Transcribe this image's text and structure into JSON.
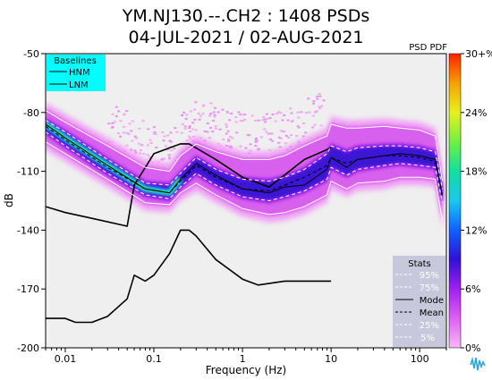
{
  "chart_data": {
    "type": "heatmap",
    "title_line1": "YM.NJ130.--.CH2 : 1408 PSDs",
    "title_line2": "04-JUL-2021 / 02-AUG-2021",
    "corner_label": "PSD PDF",
    "xlabel": "Frequency (Hz)",
    "ylabel": "dB",
    "x_scale": "log",
    "xlim": [
      0.006,
      200
    ],
    "ylim": [
      -200,
      -50
    ],
    "x_ticks": [
      {
        "value": 0.01,
        "label": "0.01"
      },
      {
        "value": 0.1,
        "label": "0.1"
      },
      {
        "value": 1,
        "label": "1"
      },
      {
        "value": 10,
        "label": "10"
      },
      {
        "value": 100,
        "label": "100"
      }
    ],
    "y_ticks": [
      {
        "value": -50,
        "label": "-50"
      },
      {
        "value": -80,
        "label": "-80"
      },
      {
        "value": -110,
        "label": "-110"
      },
      {
        "value": -140,
        "label": "-140"
      },
      {
        "value": -170,
        "label": "-170"
      },
      {
        "value": -200,
        "label": "-200"
      }
    ],
    "colorbar": {
      "ticks": [
        {
          "value": 0,
          "label": "0%"
        },
        {
          "value": 6,
          "label": "6%"
        },
        {
          "value": 12,
          "label": "12%"
        },
        {
          "value": 18,
          "label": "18%"
        },
        {
          "value": 24,
          "label": "24%"
        },
        {
          "value": 30,
          "label": "30+%"
        }
      ],
      "colors": [
        "#f7b8f8",
        "#e060f0",
        "#a020f0",
        "#3010d8",
        "#1060ff",
        "#18c8f0",
        "#10e0a0",
        "#70f040",
        "#e8f020",
        "#f8a000",
        "#ff2000"
      ]
    },
    "baselines_legend": {
      "title": "Baselines",
      "items": [
        "HNM",
        "LNM"
      ],
      "bg_color": "#00ffff"
    },
    "stats_legend": {
      "title": "Stats",
      "items": [
        "95%",
        "75%",
        "Mode",
        "Mean",
        "25%",
        "5%"
      ],
      "bg_color": "#c8c8dc"
    },
    "series": [
      {
        "name": "HNM",
        "x": [
          0.006,
          0.01,
          0.02,
          0.05,
          0.06,
          0.1,
          0.2,
          0.25,
          0.5,
          1,
          2,
          5,
          10
        ],
        "values": [
          -128,
          -131,
          -134,
          -138,
          -117,
          -101,
          -96,
          -96,
          -104,
          -113,
          -118,
          -104,
          -98
        ]
      },
      {
        "name": "LNM",
        "x": [
          0.006,
          0.01,
          0.013,
          0.02,
          0.03,
          0.05,
          0.06,
          0.08,
          0.1,
          0.15,
          0.2,
          0.25,
          0.3,
          0.5,
          1,
          1.5,
          3,
          10
        ],
        "values": [
          -185,
          -185,
          -187,
          -187,
          -184,
          -175,
          -163,
          -166,
          -163,
          -152,
          -140,
          -140,
          -143,
          -155,
          -165,
          -168,
          -166,
          -166
        ]
      },
      {
        "name": "Mode",
        "x": [
          0.006,
          0.01,
          0.03,
          0.08,
          0.15,
          0.2,
          0.3,
          0.5,
          1,
          2,
          3,
          5,
          9,
          10,
          15,
          20,
          40,
          60,
          100,
          150,
          180
        ],
        "values": [
          -86,
          -93,
          -107,
          -119,
          -121,
          -114,
          -106,
          -112,
          -119,
          -121,
          -118,
          -117,
          -109,
          -103,
          -108,
          -104,
          -102,
          -101,
          -102,
          -104,
          -122
        ]
      },
      {
        "name": "Mean",
        "x": [
          0.006,
          0.01,
          0.03,
          0.08,
          0.15,
          0.2,
          0.3,
          0.5,
          1,
          2,
          3,
          5,
          9,
          10,
          15,
          20,
          40,
          60,
          100,
          150,
          180
        ],
        "values": [
          -87,
          -94,
          -108,
          -119,
          -121,
          -115,
          -107,
          -113,
          -119,
          -120,
          -117,
          -113,
          -107,
          -103,
          -106,
          -104,
          -102,
          -102,
          -103,
          -105,
          -123
        ]
      },
      {
        "name": "95%",
        "x": [
          0.006,
          0.01,
          0.03,
          0.08,
          0.15,
          0.2,
          0.3,
          0.5,
          1,
          2,
          3,
          5,
          9,
          10,
          15,
          20,
          40,
          60,
          100,
          150,
          180
        ],
        "values": [
          -79,
          -85,
          -97,
          -108,
          -110,
          -102,
          -96,
          -100,
          -104,
          -104,
          -102,
          -97,
          -92,
          -86,
          -88,
          -88,
          -87,
          -88,
          -89,
          -92,
          -115
        ]
      },
      {
        "name": "75%",
        "x": [
          0.006,
          0.01,
          0.03,
          0.08,
          0.15,
          0.2,
          0.3,
          0.5,
          1,
          2,
          3,
          5,
          9,
          10,
          15,
          20,
          40,
          60,
          100,
          150,
          180
        ],
        "values": [
          -84,
          -90,
          -104,
          -116,
          -117,
          -111,
          -103,
          -109,
          -114,
          -115,
          -113,
          -109,
          -101,
          -97,
          -100,
          -98,
          -97,
          -97,
          -98,
          -100,
          -119
        ]
      },
      {
        "name": "25%",
        "x": [
          0.006,
          0.01,
          0.03,
          0.08,
          0.15,
          0.2,
          0.3,
          0.5,
          1,
          2,
          3,
          5,
          9,
          10,
          15,
          20,
          40,
          60,
          100,
          150,
          180
        ],
        "values": [
          -90,
          -97,
          -111,
          -122,
          -124,
          -118,
          -111,
          -117,
          -123,
          -125,
          -123,
          -120,
          -114,
          -108,
          -112,
          -109,
          -107,
          -106,
          -107,
          -108,
          -126
        ]
      },
      {
        "name": "5%",
        "x": [
          0.006,
          0.01,
          0.03,
          0.08,
          0.15,
          0.2,
          0.3,
          0.5,
          1,
          2,
          3,
          5,
          9,
          10,
          15,
          20,
          40,
          60,
          100,
          150,
          180
        ],
        "values": [
          -95,
          -101,
          -114,
          -126,
          -127,
          -121,
          -116,
          -122,
          -129,
          -132,
          -131,
          -128,
          -122,
          -115,
          -119,
          -116,
          -115,
          -113,
          -113,
          -114,
          -135
        ]
      }
    ]
  }
}
